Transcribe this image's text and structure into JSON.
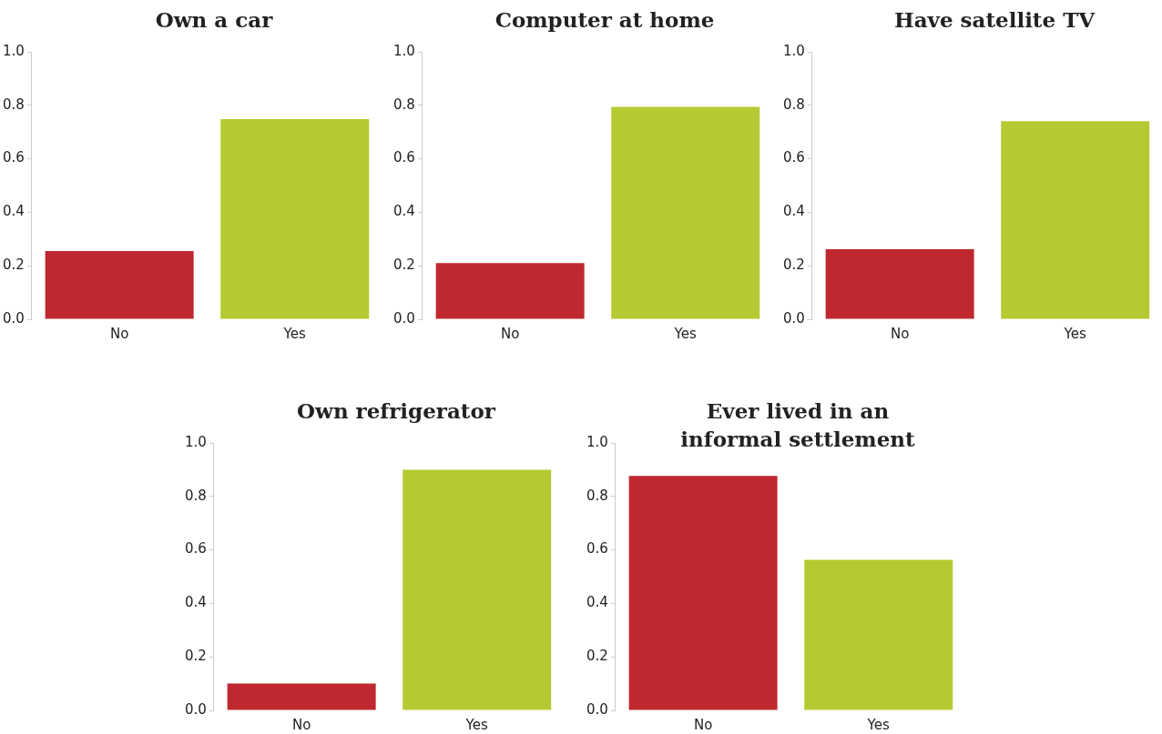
{
  "chart_data": [
    {
      "type": "bar",
      "title": "Own a car",
      "categories": [
        "No",
        "Yes"
      ],
      "values": [
        0.255,
        0.748
      ],
      "colors": [
        "#c0282f",
        "#b5c932"
      ],
      "ylim": [
        0,
        1
      ],
      "yticks": [
        {
          "value": 0,
          "label": "0.0"
        },
        {
          "value": 0.2,
          "label": "0.2"
        },
        {
          "value": 0.4,
          "label": "0.4"
        },
        {
          "value": 0.6,
          "label": "0.6"
        },
        {
          "value": 0.8,
          "label": "0.8"
        },
        {
          "value": 1,
          "label": "1.0"
        }
      ]
    },
    {
      "type": "bar",
      "title": "Computer at home",
      "categories": [
        "No",
        "Yes"
      ],
      "values": [
        0.21,
        0.794
      ],
      "colors": [
        "#c0282f",
        "#b5c932"
      ],
      "ylim": [
        0,
        1
      ],
      "yticks": [
        {
          "value": 0,
          "label": "0.0"
        },
        {
          "value": 0.2,
          "label": "0.2"
        },
        {
          "value": 0.4,
          "label": "0.4"
        },
        {
          "value": 0.6,
          "label": "0.6"
        },
        {
          "value": 0.8,
          "label": "0.8"
        },
        {
          "value": 1,
          "label": "1.0"
        }
      ]
    },
    {
      "type": "bar",
      "title": "Have satellite TV",
      "categories": [
        "No",
        "Yes"
      ],
      "values": [
        0.262,
        0.741
      ],
      "colors": [
        "#c0282f",
        "#b5c932"
      ],
      "ylim": [
        0,
        1
      ],
      "yticks": [
        {
          "value": 0,
          "label": "0.0"
        },
        {
          "value": 0.2,
          "label": "0.2"
        },
        {
          "value": 0.4,
          "label": "0.4"
        },
        {
          "value": 0.6,
          "label": "0.6"
        },
        {
          "value": 0.8,
          "label": "0.8"
        },
        {
          "value": 1,
          "label": "1.0"
        }
      ]
    },
    {
      "type": "bar",
      "title": "Own refrigerator",
      "categories": [
        "No",
        "Yes"
      ],
      "values": [
        0.1,
        0.9
      ],
      "colors": [
        "#c0282f",
        "#b5c932"
      ],
      "ylim": [
        0,
        1
      ],
      "yticks": [
        {
          "value": 0,
          "label": "0.0"
        },
        {
          "value": 0.2,
          "label": "0.2"
        },
        {
          "value": 0.4,
          "label": "0.4"
        },
        {
          "value": 0.6,
          "label": "0.6"
        },
        {
          "value": 0.8,
          "label": "0.8"
        },
        {
          "value": 1,
          "label": "1.0"
        }
      ]
    },
    {
      "type": "bar",
      "title": "Ever lived in an informal settlement",
      "categories": [
        "No",
        "Yes"
      ],
      "values": [
        0.877,
        0.563
      ],
      "colors": [
        "#c0282f",
        "#b5c932"
      ],
      "ylim": [
        0,
        1
      ],
      "yticks": [
        {
          "value": 0,
          "label": "0.0"
        },
        {
          "value": 0.2,
          "label": "0.2"
        },
        {
          "value": 0.4,
          "label": "0.4"
        },
        {
          "value": 0.6,
          "label": "0.6"
        },
        {
          "value": 0.8,
          "label": "0.8"
        },
        {
          "value": 1,
          "label": "1.0"
        }
      ]
    }
  ]
}
